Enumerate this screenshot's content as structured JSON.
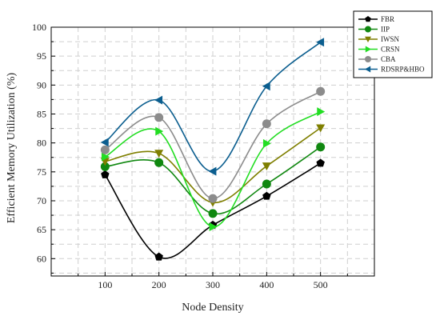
{
  "chart_data": {
    "type": "line",
    "title": "",
    "xlabel": "Node Density",
    "ylabel": "Efficient Memory Utilization (%)",
    "x": [
      100,
      200,
      300,
      400,
      500
    ],
    "xlim": [
      0,
      600
    ],
    "ylim": [
      57,
      100
    ],
    "xticks": [
      100,
      200,
      300,
      400,
      500
    ],
    "yticks": [
      60,
      65,
      70,
      75,
      80,
      85,
      90,
      95,
      100
    ],
    "grid": true,
    "legend_position": "top-right",
    "series": [
      {
        "name": "FBR",
        "values": [
          74.5,
          60.3,
          65.8,
          70.8,
          76.5
        ],
        "color": "#000000",
        "marker": "pentagon"
      },
      {
        "name": "IIP",
        "values": [
          75.9,
          76.6,
          67.8,
          72.9,
          79.3
        ],
        "color": "#108810",
        "marker": "circle"
      },
      {
        "name": "IWSN",
        "values": [
          76.8,
          78.2,
          69.7,
          76.0,
          82.6
        ],
        "color": "#7f7f00",
        "marker": "triangle-down"
      },
      {
        "name": "CRSN",
        "values": [
          77.6,
          82.0,
          65.5,
          79.9,
          85.4
        ],
        "color": "#22dd22",
        "marker": "triangle-right"
      },
      {
        "name": "CBA",
        "values": [
          78.8,
          84.4,
          70.4,
          83.3,
          88.9
        ],
        "color": "#8c8c8c",
        "marker": "circle"
      },
      {
        "name": "RDSRP&HBO",
        "values": [
          80.1,
          87.4,
          75.1,
          89.8,
          97.4
        ],
        "color": "#0b5e8f",
        "marker": "triangle-left"
      }
    ]
  }
}
